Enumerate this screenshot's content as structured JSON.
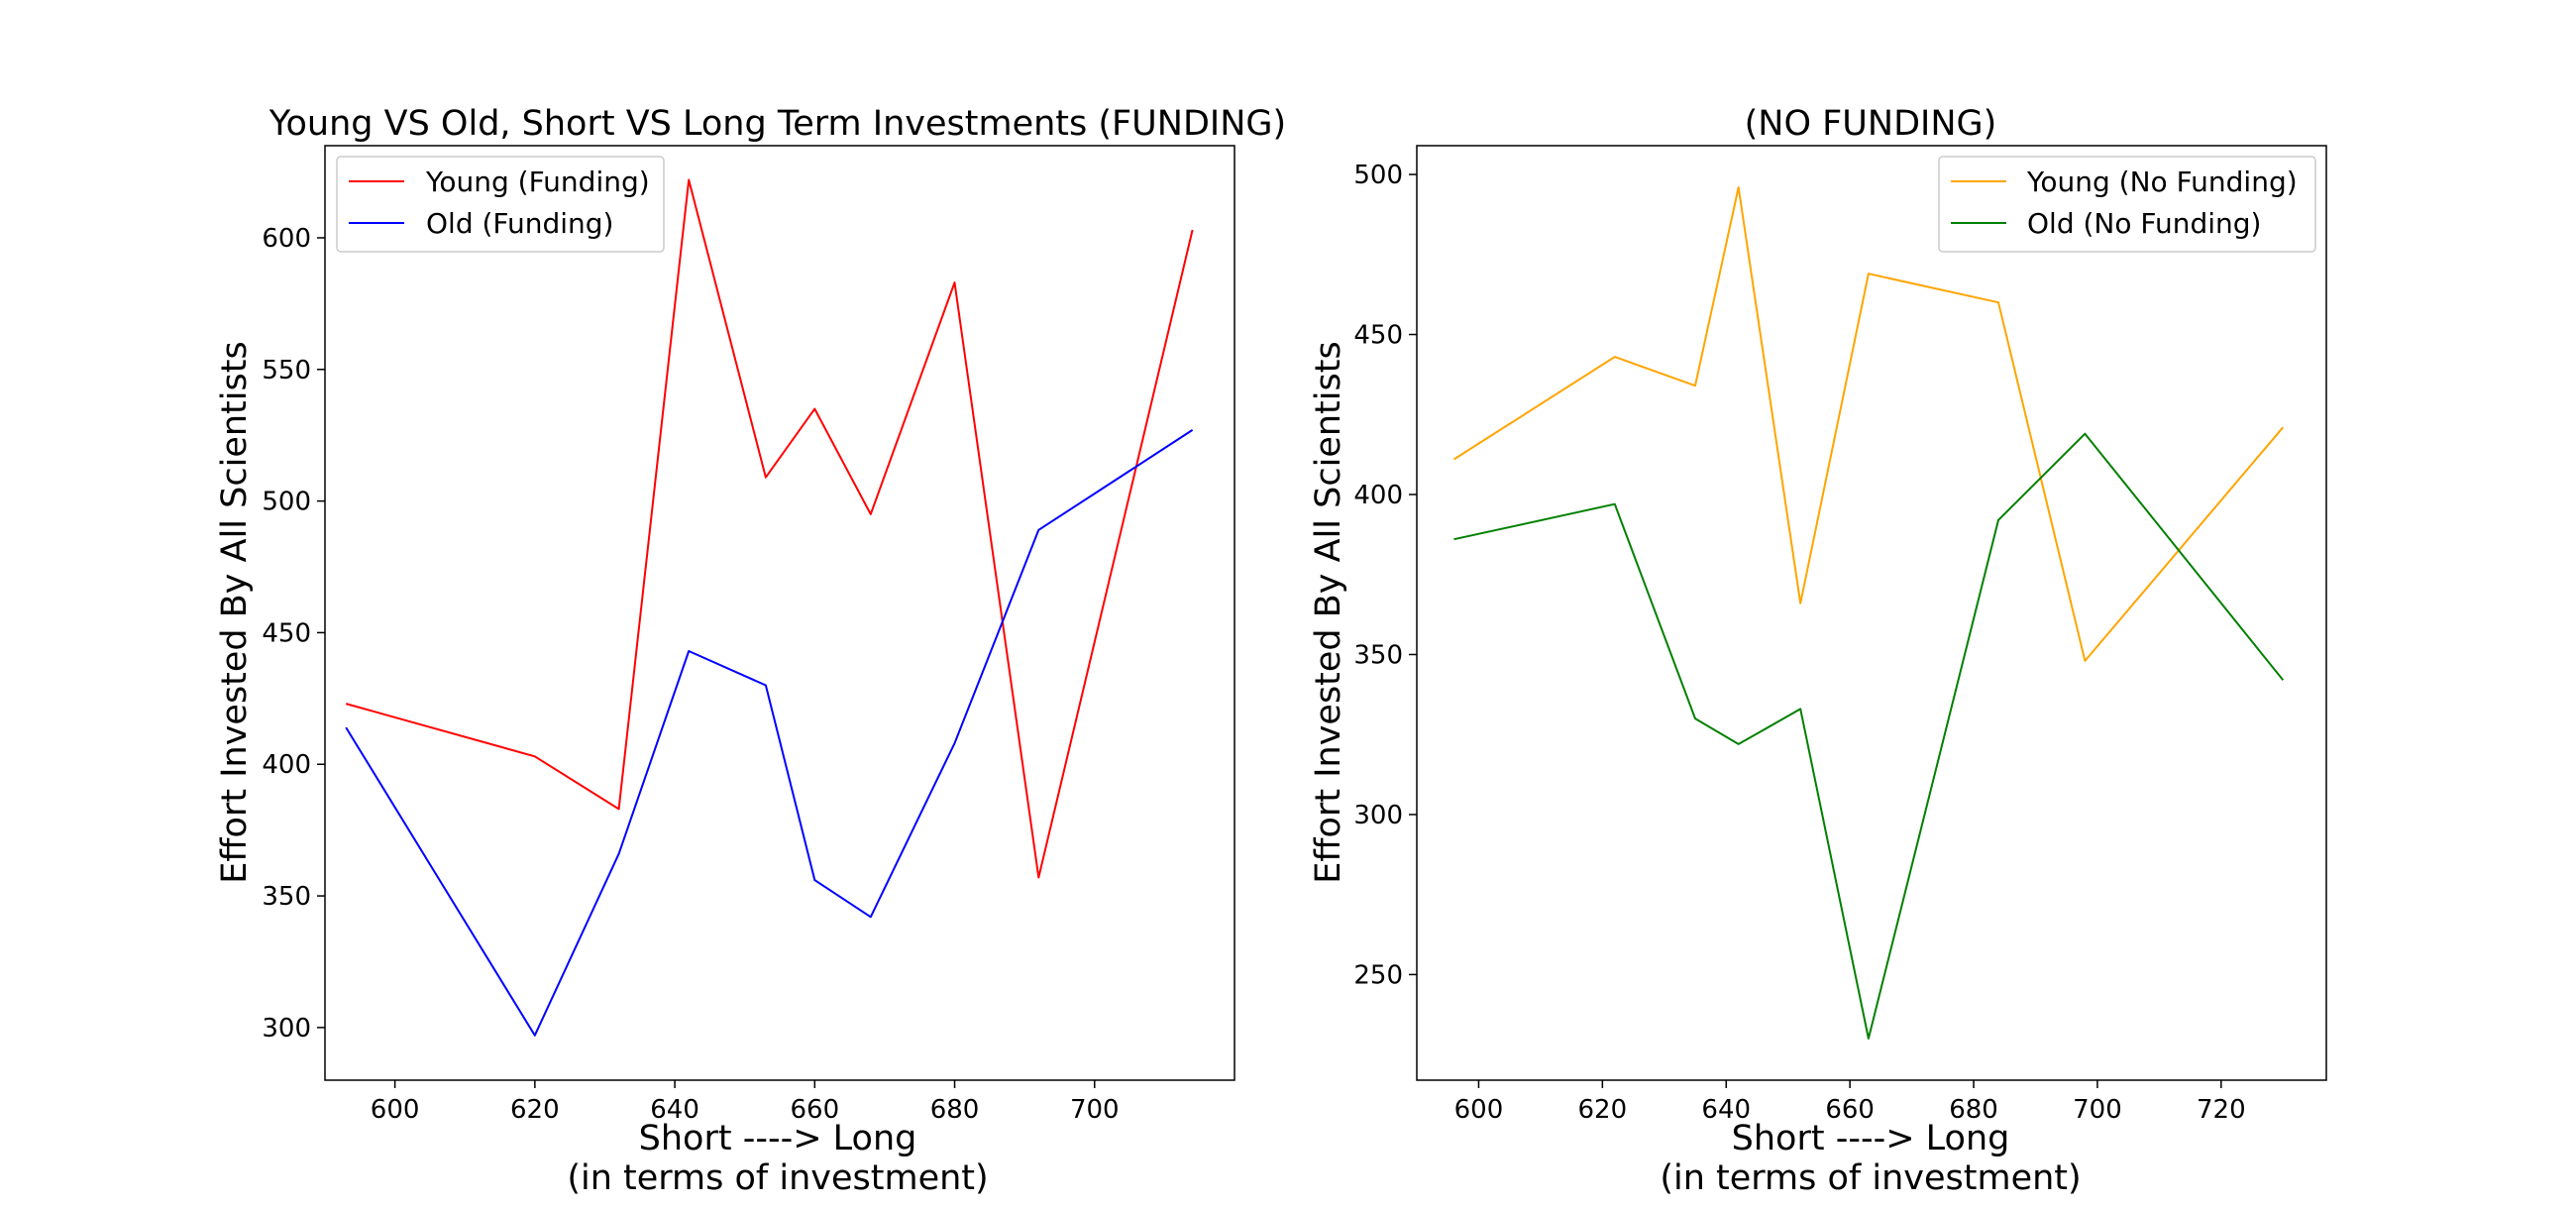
{
  "chart_data": [
    {
      "type": "line",
      "title": "Young VS Old, Short VS Long Term Investments (FUNDING)",
      "xlabel": [
        "Short ----> Long",
        "(in terms of investment)"
      ],
      "ylabel": "Effort Invested By All Scientists",
      "xlim": [
        590,
        720
      ],
      "ylim": [
        280,
        635
      ],
      "xticks": [
        600,
        620,
        640,
        660,
        680,
        700
      ],
      "yticks": [
        300,
        350,
        400,
        450,
        500,
        550,
        600
      ],
      "legend_placement": "upper-left",
      "grid": false,
      "series": [
        {
          "name": "Young (Funding)",
          "color": "#ff0000",
          "x": [
            593,
            620,
            632,
            642,
            653,
            660,
            668,
            680,
            692,
            714
          ],
          "y": [
            423,
            403,
            383,
            622,
            509,
            535,
            495,
            583,
            357,
            603
          ]
        },
        {
          "name": "Old (Funding)",
          "color": "#0000ff",
          "x": [
            593,
            620,
            632,
            642,
            653,
            660,
            668,
            680,
            692,
            714
          ],
          "y": [
            414,
            297,
            366,
            443,
            430,
            356,
            342,
            408,
            489,
            527
          ]
        }
      ]
    },
    {
      "type": "line",
      "title": "(NO FUNDING)",
      "xlabel": [
        "Short ----> Long",
        "(in terms of investment)"
      ],
      "ylabel": "Effort Invested By All Scientists",
      "xlim": [
        590,
        737
      ],
      "ylim": [
        217,
        509
      ],
      "xticks": [
        600,
        620,
        640,
        660,
        680,
        700,
        720
      ],
      "yticks": [
        250,
        300,
        350,
        400,
        450,
        500
      ],
      "legend_placement": "upper-right",
      "grid": false,
      "series": [
        {
          "name": "Young (No Funding)",
          "color": "#ffa500",
          "x": [
            596,
            622,
            635,
            642,
            652,
            663,
            684,
            698,
            730
          ],
          "y": [
            411,
            443,
            434,
            496,
            366,
            469,
            460,
            348,
            421
          ]
        },
        {
          "name": "Old (No Funding)",
          "color": "#008000",
          "x": [
            596,
            622,
            635,
            642,
            652,
            663,
            684,
            698,
            730
          ],
          "y": [
            386,
            397,
            330,
            322,
            333,
            230,
            392,
            419,
            342
          ]
        }
      ]
    }
  ]
}
